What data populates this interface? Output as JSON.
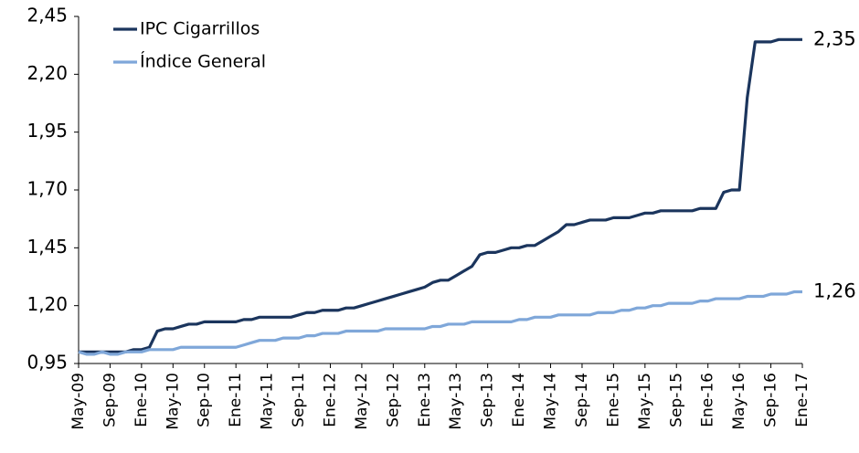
{
  "chart_data": {
    "type": "line",
    "categories": [
      "May-09",
      null,
      null,
      null,
      "Sep-09",
      null,
      null,
      null,
      "Ene-10",
      null,
      null,
      null,
      "May-10",
      null,
      null,
      null,
      "Sep-10",
      null,
      null,
      null,
      "Ene-11",
      null,
      null,
      null,
      "May-11",
      null,
      null,
      null,
      "Sep-11",
      null,
      null,
      null,
      "Ene-12",
      null,
      null,
      null,
      "May-12",
      null,
      null,
      null,
      "Sep-12",
      null,
      null,
      null,
      "Ene-13",
      null,
      null,
      null,
      "May-13",
      null,
      null,
      null,
      "Sep-13",
      null,
      null,
      null,
      "Ene-14",
      null,
      null,
      null,
      "May-14",
      null,
      null,
      null,
      "Sep-14",
      null,
      null,
      null,
      "Ene-15",
      null,
      null,
      null,
      "May-15",
      null,
      null,
      null,
      "Sep-15",
      null,
      null,
      null,
      "Ene-16",
      null,
      null,
      null,
      "May-16",
      null,
      null,
      null,
      "Sep-16",
      null,
      null,
      null,
      "Ene-17"
    ],
    "series": [
      {
        "name": "IPC Cigarrillos",
        "color": "#1b355d",
        "values": [
          1.0,
          1.0,
          1.0,
          1.0,
          1.0,
          1.0,
          1.0,
          1.01,
          1.01,
          1.02,
          1.09,
          1.1,
          1.1,
          1.11,
          1.12,
          1.12,
          1.13,
          1.13,
          1.13,
          1.13,
          1.13,
          1.14,
          1.14,
          1.15,
          1.15,
          1.15,
          1.15,
          1.15,
          1.16,
          1.17,
          1.17,
          1.18,
          1.18,
          1.18,
          1.19,
          1.19,
          1.2,
          1.21,
          1.22,
          1.23,
          1.24,
          1.25,
          1.26,
          1.27,
          1.28,
          1.3,
          1.31,
          1.31,
          1.33,
          1.35,
          1.37,
          1.42,
          1.43,
          1.43,
          1.44,
          1.45,
          1.45,
          1.46,
          1.46,
          1.48,
          1.5,
          1.52,
          1.55,
          1.55,
          1.56,
          1.57,
          1.57,
          1.57,
          1.58,
          1.58,
          1.58,
          1.59,
          1.6,
          1.6,
          1.61,
          1.61,
          1.61,
          1.61,
          1.61,
          1.62,
          1.62,
          1.62,
          1.69,
          1.7,
          1.7,
          2.1,
          2.34,
          2.34,
          2.34,
          2.35,
          2.35,
          2.35,
          2.35
        ],
        "value_labels": [
          null,
          null,
          null,
          null,
          null,
          null,
          null,
          null,
          null,
          null,
          null,
          null,
          null,
          null,
          null,
          null,
          null,
          null,
          null,
          null,
          null,
          null,
          null,
          null,
          null,
          null,
          null,
          null,
          null,
          null,
          null,
          null,
          null,
          null,
          null,
          null,
          null,
          null,
          null,
          null,
          null,
          null,
          null,
          null,
          null,
          null,
          null,
          null,
          null,
          null,
          null,
          null,
          null,
          null,
          null,
          null,
          null,
          null,
          null,
          null,
          null,
          null,
          null,
          null,
          null,
          null,
          null,
          null,
          null,
          null,
          null,
          null,
          null,
          null,
          null,
          null,
          null,
          null,
          null,
          null,
          null,
          null,
          null,
          null,
          null,
          null,
          null,
          null,
          null,
          null,
          null,
          null,
          "2,35"
        ]
      },
      {
        "name": "Índice General",
        "color": "#7fa7d9",
        "values": [
          1.0,
          0.99,
          0.99,
          1.0,
          0.99,
          0.99,
          1.0,
          1.0,
          1.0,
          1.01,
          1.01,
          1.01,
          1.01,
          1.02,
          1.02,
          1.02,
          1.02,
          1.02,
          1.02,
          1.02,
          1.02,
          1.03,
          1.04,
          1.05,
          1.05,
          1.05,
          1.06,
          1.06,
          1.06,
          1.07,
          1.07,
          1.08,
          1.08,
          1.08,
          1.09,
          1.09,
          1.09,
          1.09,
          1.09,
          1.1,
          1.1,
          1.1,
          1.1,
          1.1,
          1.1,
          1.11,
          1.11,
          1.12,
          1.12,
          1.12,
          1.13,
          1.13,
          1.13,
          1.13,
          1.13,
          1.13,
          1.14,
          1.14,
          1.15,
          1.15,
          1.15,
          1.16,
          1.16,
          1.16,
          1.16,
          1.16,
          1.17,
          1.17,
          1.17,
          1.18,
          1.18,
          1.19,
          1.19,
          1.2,
          1.2,
          1.21,
          1.21,
          1.21,
          1.21,
          1.22,
          1.22,
          1.23,
          1.23,
          1.23,
          1.23,
          1.24,
          1.24,
          1.24,
          1.25,
          1.25,
          1.25,
          1.26,
          1.26
        ],
        "value_labels": [
          null,
          null,
          null,
          null,
          null,
          null,
          null,
          null,
          null,
          null,
          null,
          null,
          null,
          null,
          null,
          null,
          null,
          null,
          null,
          null,
          null,
          null,
          null,
          null,
          null,
          null,
          null,
          null,
          null,
          null,
          null,
          null,
          null,
          null,
          null,
          null,
          null,
          null,
          null,
          null,
          null,
          null,
          null,
          null,
          null,
          null,
          null,
          null,
          null,
          null,
          null,
          null,
          null,
          null,
          null,
          null,
          null,
          null,
          null,
          null,
          null,
          null,
          null,
          null,
          null,
          null,
          null,
          null,
          null,
          null,
          null,
          null,
          null,
          null,
          null,
          null,
          null,
          null,
          null,
          null,
          null,
          null,
          null,
          null,
          null,
          null,
          null,
          null,
          null,
          null,
          null,
          null,
          "1,26"
        ]
      }
    ],
    "ylim": [
      0.95,
      2.45
    ],
    "yticks": [
      {
        "value": 0.95,
        "label": "0,95"
      },
      {
        "value": 1.2,
        "label": "1,20"
      },
      {
        "value": 1.45,
        "label": "1,45"
      },
      {
        "value": 1.7,
        "label": "1,70"
      },
      {
        "value": 1.95,
        "label": "1,95"
      },
      {
        "value": 2.2,
        "label": "2,20"
      },
      {
        "value": 2.45,
        "label": "2,45"
      }
    ],
    "grid": false,
    "legend": "upper-left"
  }
}
